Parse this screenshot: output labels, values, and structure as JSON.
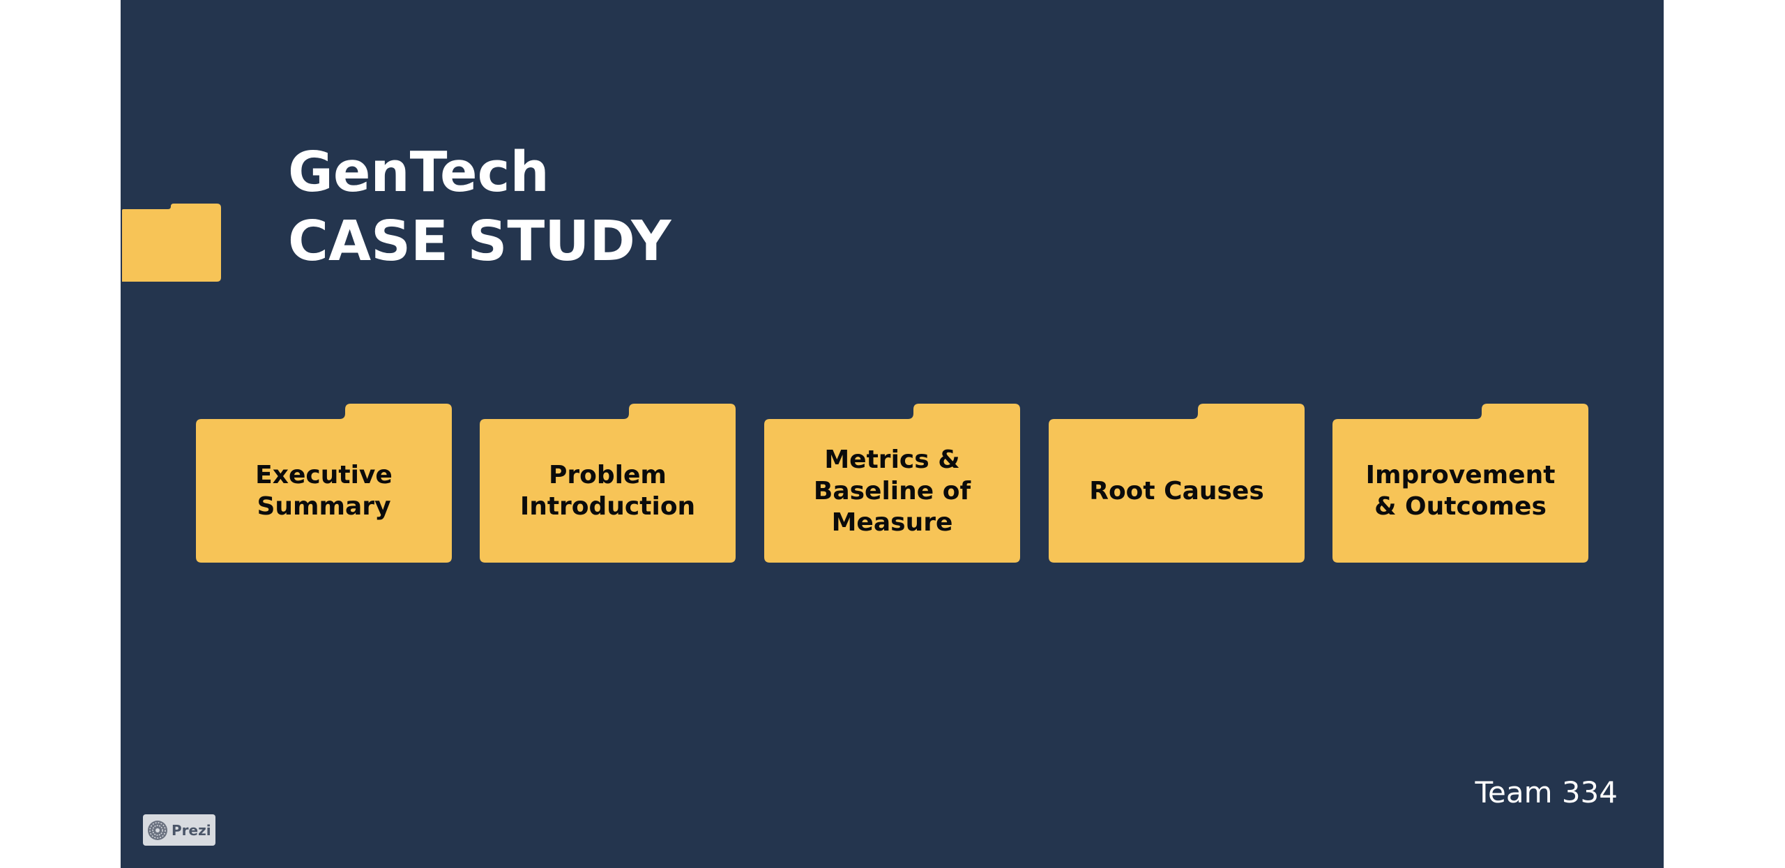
{
  "presentation": {
    "title_line1": "GenTech",
    "title_line2": "CASE STUDY",
    "team": "Team 334"
  },
  "folders": [
    {
      "label": "Executive\nSummary"
    },
    {
      "label": "Problem\nIntroduction"
    },
    {
      "label": "Metrics &\nBaseline of\nMeasure"
    },
    {
      "label": "Root Causes"
    },
    {
      "label": "Improvement\n& Outcomes"
    }
  ],
  "badge": {
    "label": "Prezi",
    "icon": "prezi-logo-icon"
  },
  "colors": {
    "background": "#24354e",
    "folder": "#f7c457",
    "text_light": "#ffffff",
    "text_dark": "#0b0b0b"
  }
}
